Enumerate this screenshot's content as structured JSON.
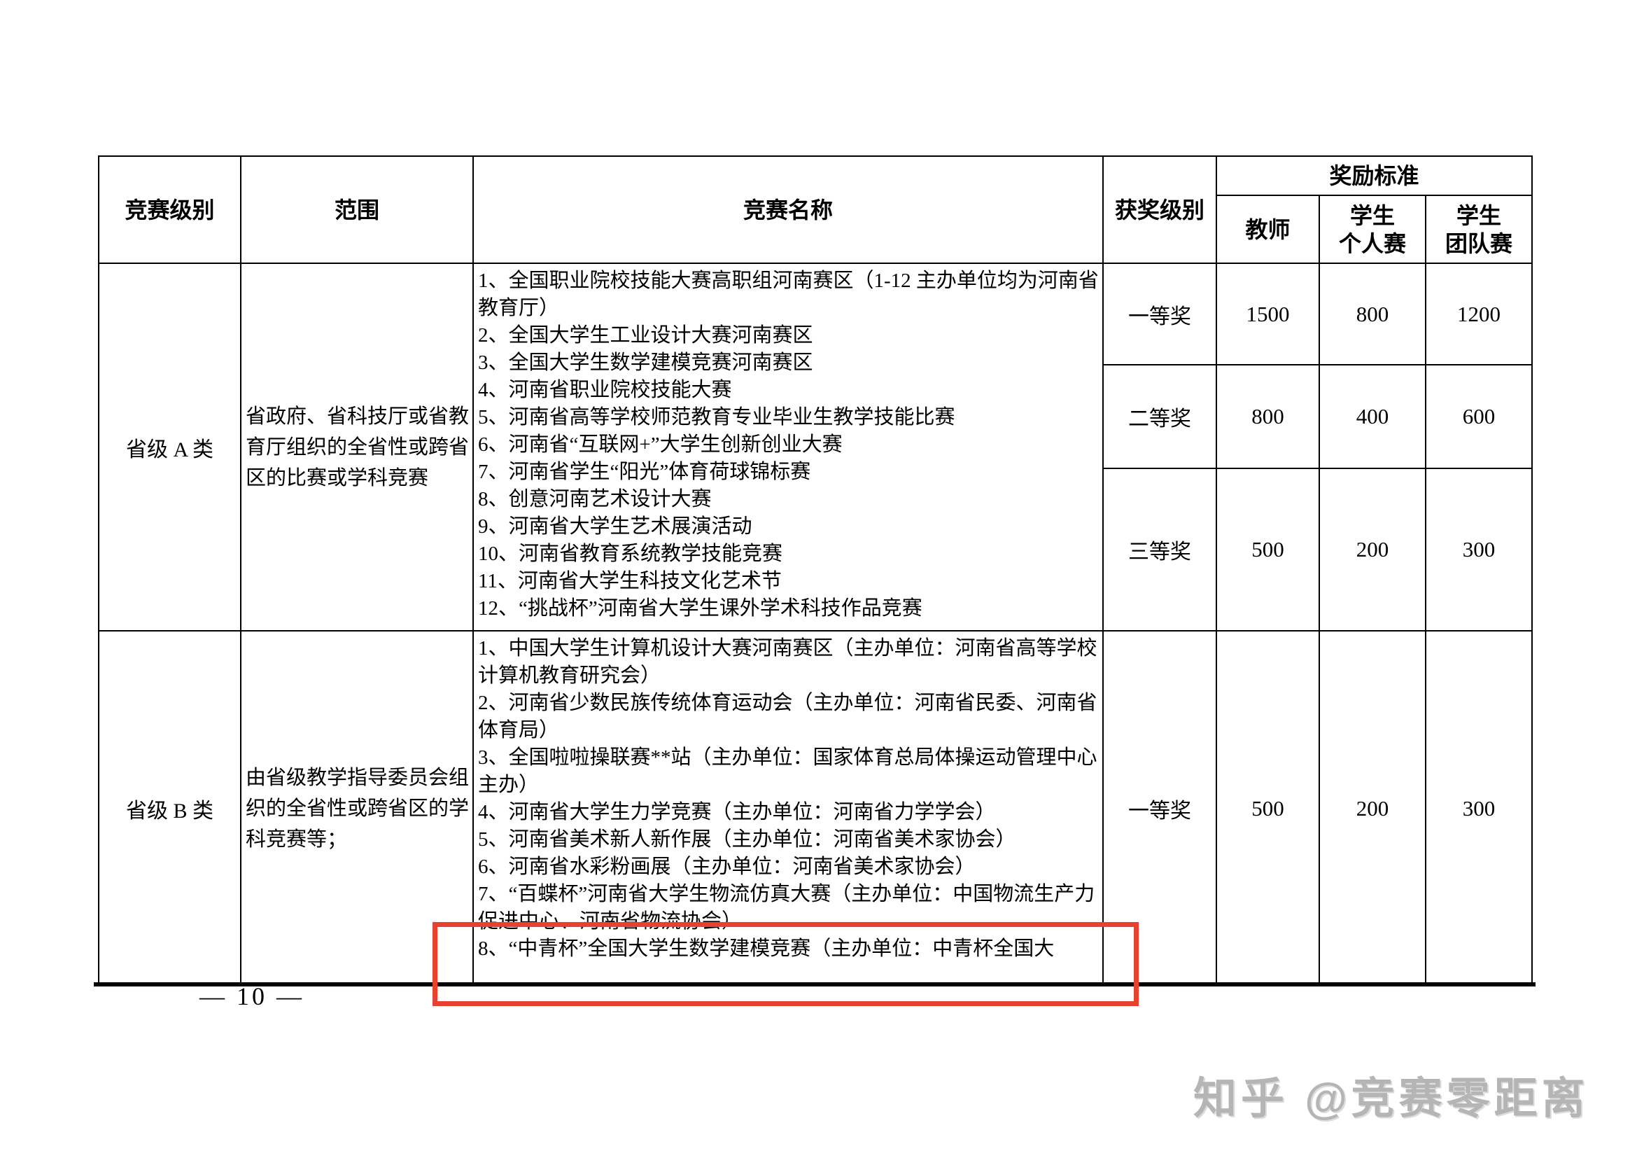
{
  "page": {
    "page_number": "— 10 —",
    "watermark": "知乎 @竞赛零距离"
  },
  "annotations": {
    "highlight_box_color": "#e8412f"
  },
  "table": {
    "header": {
      "competition_level": "竞赛级别",
      "scope": "范围",
      "competition_name": "竞赛名称",
      "award_level": "获奖级别",
      "reward_standard": "奖励标准",
      "teacher": "教师",
      "student_individual": "学生\n个人赛",
      "student_team": "学生\n团队赛"
    },
    "groups": [
      {
        "level": "省级 A 类",
        "scope": "省政府、省科技厅或省教育厅组织的全省性或跨省区的比赛或学科竞赛",
        "competitions": [
          "1、全国职业院校技能大赛高职组河南赛区（1-12 主办单位均为河南省教育厅）",
          "2、全国大学生工业设计大赛河南赛区",
          "3、全国大学生数学建模竞赛河南赛区",
          "4、河南省职业院校技能大赛",
          "5、河南省高等学校师范教育专业毕业生教学技能比赛",
          "6、河南省“互联网+”大学生创新创业大赛",
          "7、河南省学生“阳光”体育荷球锦标赛",
          "8、创意河南艺术设计大赛",
          "9、河南省大学生艺术展演活动",
          "10、河南省教育系统教学技能竞赛",
          "11、河南省大学生科技文化艺术节",
          "12、“挑战杯”河南省大学生课外学术科技作品竞赛"
        ],
        "awards": [
          {
            "level": "一等奖",
            "teacher": "1500",
            "student_individual": "800",
            "student_team": "1200"
          },
          {
            "level": "二等奖",
            "teacher": "800",
            "student_individual": "400",
            "student_team": "600"
          },
          {
            "level": "三等奖",
            "teacher": "500",
            "student_individual": "200",
            "student_team": "300"
          }
        ]
      },
      {
        "level": "省级 B 类",
        "scope": "由省级教学指导委员会组织的全省性或跨省区的学科竞赛等；",
        "competitions": [
          "1、中国大学生计算机设计大赛河南赛区（主办单位：河南省高等学校计算机教育研究会）",
          "2、河南省少数民族传统体育运动会（主办单位：河南省民委、河南省体育局）",
          "3、全国啦啦操联赛**站（主办单位：国家体育总局体操运动管理中心主办）",
          "4、河南省大学生力学竞赛（主办单位：河南省力学学会）",
          "5、河南省美术新人新作展（主办单位：河南省美术家协会）",
          "6、河南省水彩粉画展（主办单位：河南省美术家协会）",
          "7、“百蝶杯”河南省大学生物流仿真大赛（主办单位：中国物流生产力促进中心、河南省物流协会）",
          "8、“中青杯”全国大学生数学建模竞赛（主办单位：中青杯全国大"
        ],
        "awards": [
          {
            "level": "一等奖",
            "teacher": "500",
            "student_individual": "200",
            "student_team": "300"
          }
        ]
      }
    ]
  }
}
